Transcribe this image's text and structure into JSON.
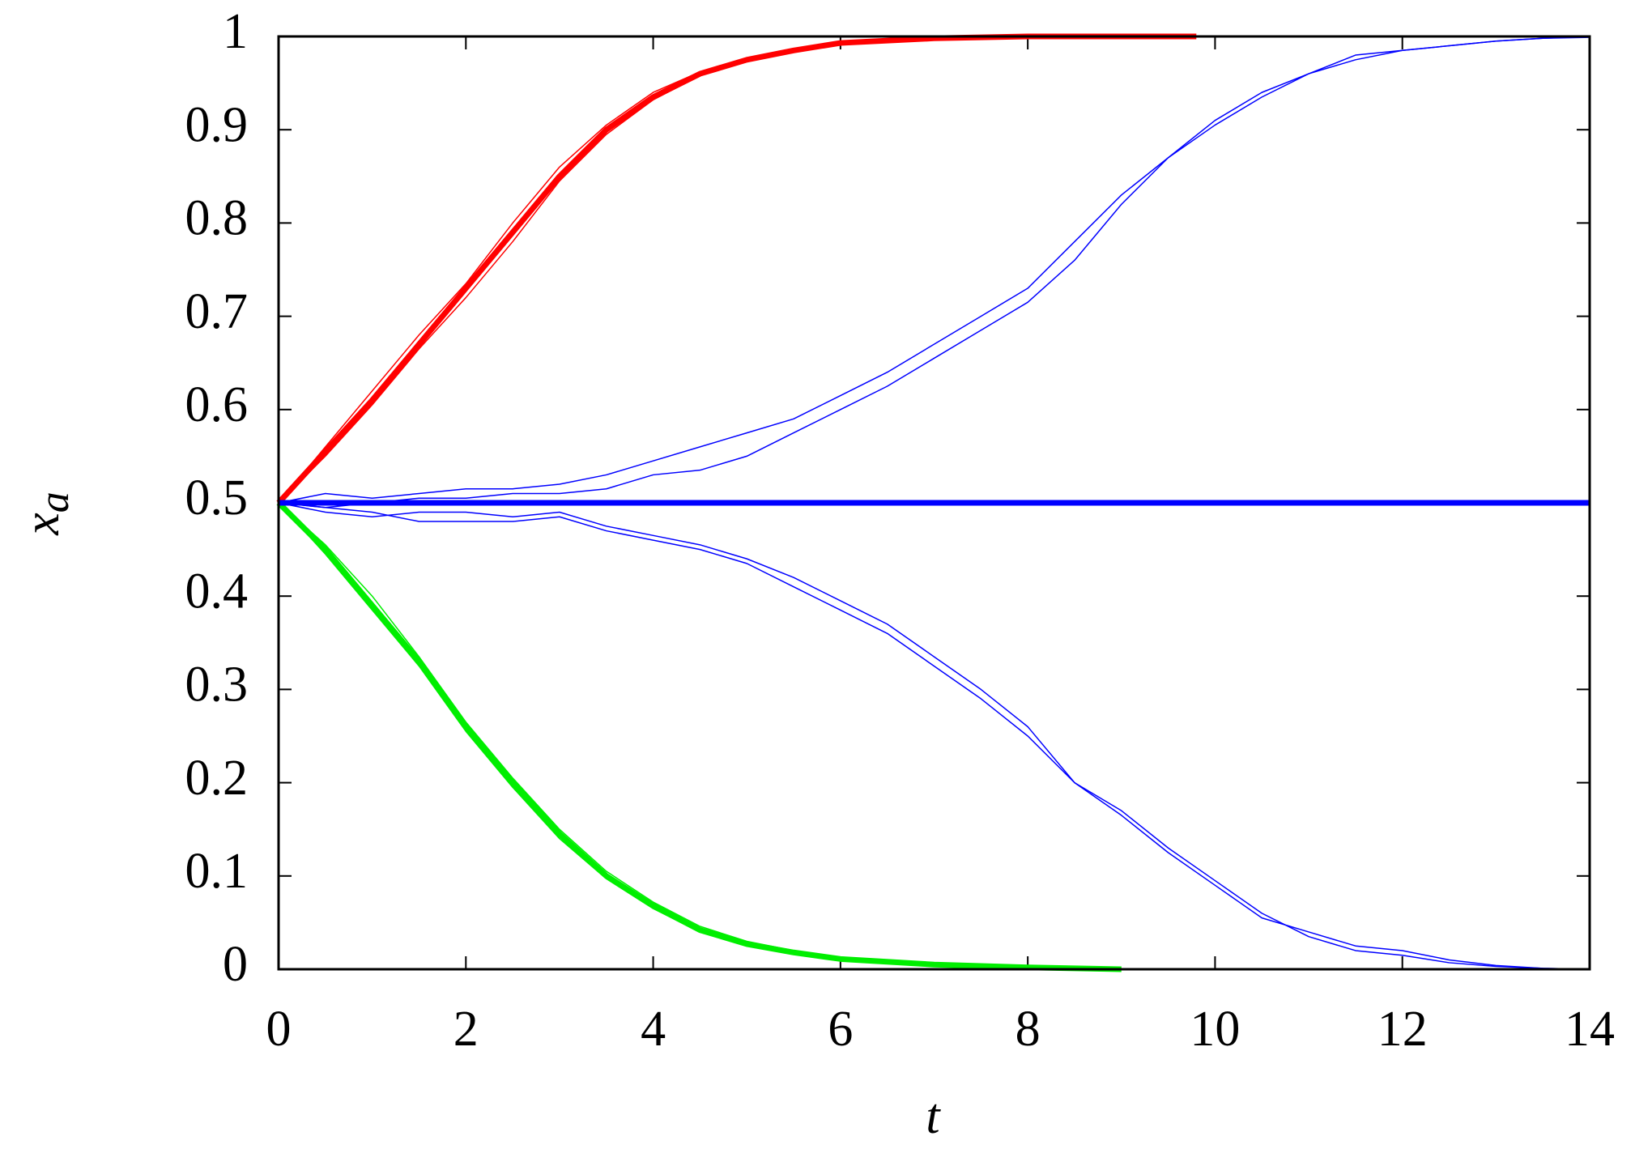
{
  "chart_data": {
    "type": "line",
    "xlabel": "t",
    "ylabel": "x",
    "ylabel_subscript": "a",
    "xlim": [
      0,
      14
    ],
    "xticks": [
      0,
      2,
      4,
      6,
      8,
      10,
      12,
      14
    ],
    "ylim": [
      0,
      1
    ],
    "yticks": [
      0,
      0.1,
      0.2,
      0.3,
      0.4,
      0.5,
      0.6,
      0.7,
      0.8,
      0.9,
      1
    ],
    "series": [
      {
        "color": "#0000ff",
        "linewidth": 1.5,
        "x": [
          0,
          0.5,
          1,
          1.5,
          2,
          2.5,
          3,
          3.5,
          4,
          4.5,
          5,
          5.5,
          6,
          6.5,
          7,
          7.5,
          8,
          8.5,
          9,
          9.5,
          10,
          10.5,
          11,
          11.5,
          12,
          12.5,
          13,
          13.5,
          14
        ],
        "values": [
          0.5,
          0.51,
          0.505,
          0.51,
          0.515,
          0.515,
          0.52,
          0.53,
          0.545,
          0.56,
          0.575,
          0.59,
          0.615,
          0.64,
          0.67,
          0.7,
          0.73,
          0.78,
          0.83,
          0.87,
          0.91,
          0.94,
          0.96,
          0.975,
          0.985,
          0.99,
          0.995,
          0.998,
          1
        ]
      },
      {
        "color": "#0000ff",
        "linewidth": 1.5,
        "x": [
          0,
          0.5,
          1,
          1.5,
          2,
          2.5,
          3,
          3.5,
          4,
          4.5,
          5,
          5.5,
          6,
          6.5,
          7,
          7.5,
          8,
          8.5,
          9,
          9.5,
          10,
          10.5,
          11,
          11.5,
          12,
          12.5,
          13,
          13.5,
          14
        ],
        "values": [
          0.5,
          0.495,
          0.5,
          0.505,
          0.505,
          0.51,
          0.51,
          0.515,
          0.53,
          0.535,
          0.55,
          0.575,
          0.6,
          0.625,
          0.655,
          0.685,
          0.715,
          0.76,
          0.82,
          0.87,
          0.905,
          0.935,
          0.96,
          0.98,
          0.985,
          0.99,
          0.995,
          0.998,
          0.999
        ]
      },
      {
        "color": "#0000ff",
        "linewidth": 1.5,
        "x": [
          0,
          0.5,
          1,
          1.5,
          2,
          2.5,
          3,
          3.5,
          4,
          4.5,
          5,
          5.5,
          6,
          6.5,
          7,
          7.5,
          8,
          8.5,
          9,
          9.5,
          10,
          10.5,
          11,
          11.5,
          12,
          12.5,
          13,
          13.5,
          14
        ],
        "values": [
          0.5,
          0.49,
          0.485,
          0.49,
          0.49,
          0.485,
          0.49,
          0.475,
          0.465,
          0.455,
          0.44,
          0.42,
          0.395,
          0.37,
          0.335,
          0.3,
          0.26,
          0.2,
          0.17,
          0.13,
          0.095,
          0.06,
          0.035,
          0.02,
          0.015,
          0.007,
          0.003,
          0.001,
          0
        ]
      },
      {
        "color": "#0000ff",
        "linewidth": 1.5,
        "x": [
          0,
          0.5,
          1,
          1.5,
          2,
          2.5,
          3,
          3.5,
          4,
          4.5,
          5,
          5.5,
          6,
          6.5,
          7,
          7.5,
          8,
          8.5,
          9,
          9.5,
          10,
          10.5,
          11,
          11.5,
          12,
          12.5,
          13,
          13.5,
          14
        ],
        "values": [
          0.5,
          0.495,
          0.49,
          0.48,
          0.48,
          0.48,
          0.485,
          0.47,
          0.46,
          0.45,
          0.435,
          0.41,
          0.385,
          0.36,
          0.325,
          0.29,
          0.25,
          0.2,
          0.165,
          0.125,
          0.09,
          0.055,
          0.04,
          0.025,
          0.02,
          0.01,
          0.004,
          0.001,
          0
        ]
      },
      {
        "color": "#ff0000",
        "linewidth": 1.5,
        "x": [
          0,
          0.5,
          1,
          1.5,
          2,
          2.5,
          3,
          3.5,
          4,
          4.5,
          5,
          5.5,
          6,
          7,
          8
        ],
        "values": [
          0.5,
          0.56,
          0.62,
          0.68,
          0.735,
          0.8,
          0.86,
          0.905,
          0.94,
          0.962,
          0.977,
          0.987,
          0.994,
          0.998,
          1
        ]
      },
      {
        "color": "#ff0000",
        "linewidth": 1.5,
        "x": [
          0,
          0.5,
          1,
          1.5,
          2,
          2.5,
          3,
          3.5,
          4,
          4.5,
          5,
          5.5,
          6,
          7,
          8
        ],
        "values": [
          0.5,
          0.55,
          0.605,
          0.665,
          0.72,
          0.78,
          0.845,
          0.895,
          0.932,
          0.958,
          0.974,
          0.985,
          0.992,
          0.998,
          1
        ]
      },
      {
        "color": "#00ee00",
        "linewidth": 1.5,
        "x": [
          0,
          0.5,
          1,
          1.5,
          2,
          2.5,
          3,
          3.5,
          4,
          4.5,
          5,
          5.5,
          6,
          7,
          8,
          9
        ],
        "values": [
          0.5,
          0.455,
          0.4,
          0.335,
          0.265,
          0.205,
          0.15,
          0.105,
          0.072,
          0.046,
          0.03,
          0.02,
          0.013,
          0.006,
          0.002,
          0
        ]
      },
      {
        "color": "#00ee00",
        "linewidth": 1.5,
        "x": [
          0,
          0.5,
          1,
          1.5,
          2,
          2.5,
          3,
          3.5,
          4,
          4.5,
          5,
          5.5,
          6,
          7,
          8,
          9
        ],
        "values": [
          0.5,
          0.445,
          0.385,
          0.325,
          0.255,
          0.195,
          0.14,
          0.097,
          0.065,
          0.04,
          0.025,
          0.016,
          0.01,
          0.004,
          0.001,
          0
        ]
      },
      {
        "color": "#ff0000",
        "linewidth": 7,
        "x": [
          0,
          0.5,
          1,
          1.5,
          2,
          2.5,
          3,
          3.5,
          4,
          4.5,
          5,
          5.5,
          6,
          7,
          8,
          9,
          9.8
        ],
        "values": [
          0.5,
          0.555,
          0.61,
          0.67,
          0.73,
          0.79,
          0.85,
          0.9,
          0.935,
          0.96,
          0.975,
          0.985,
          0.993,
          0.998,
          1,
          1,
          1
        ]
      },
      {
        "color": "#00ee00",
        "linewidth": 7,
        "x": [
          0,
          0.5,
          1,
          1.5,
          2,
          2.5,
          3,
          3.5,
          4,
          4.5,
          5,
          5.5,
          6,
          7,
          8,
          9
        ],
        "values": [
          0.5,
          0.45,
          0.39,
          0.33,
          0.26,
          0.2,
          0.145,
          0.1,
          0.068,
          0.042,
          0.027,
          0.018,
          0.011,
          0.005,
          0.002,
          0
        ]
      },
      {
        "color": "#0000ff",
        "linewidth": 7,
        "x": [
          0,
          14
        ],
        "values": [
          0.5,
          0.5
        ]
      }
    ]
  }
}
